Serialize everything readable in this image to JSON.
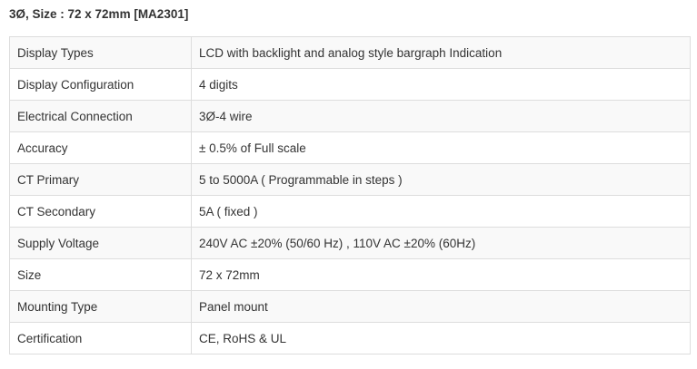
{
  "header": {
    "title": "3Ø, Size : 72 x 72mm [MA2301]"
  },
  "table": {
    "rows": [
      [
        "Display Types",
        "LCD with backlight and analog style bargraph Indication"
      ],
      [
        "Display Configuration",
        "4 digits"
      ],
      [
        "Electrical Connection",
        "3Ø-4 wire"
      ],
      [
        "Accuracy",
        "± 0.5% of Full scale"
      ],
      [
        "CT Primary",
        "5 to 5000A ( Programmable in steps )"
      ],
      [
        "CT Secondary",
        "5A ( fixed )"
      ],
      [
        "Supply Voltage",
        "240V AC ±20% (50/60 Hz) , 110V AC ±20% (60Hz)"
      ],
      [
        "Size",
        "72 x 72mm"
      ],
      [
        "Mounting Type",
        "Panel mount"
      ],
      [
        "Certification",
        "CE, RoHS & UL"
      ]
    ]
  }
}
